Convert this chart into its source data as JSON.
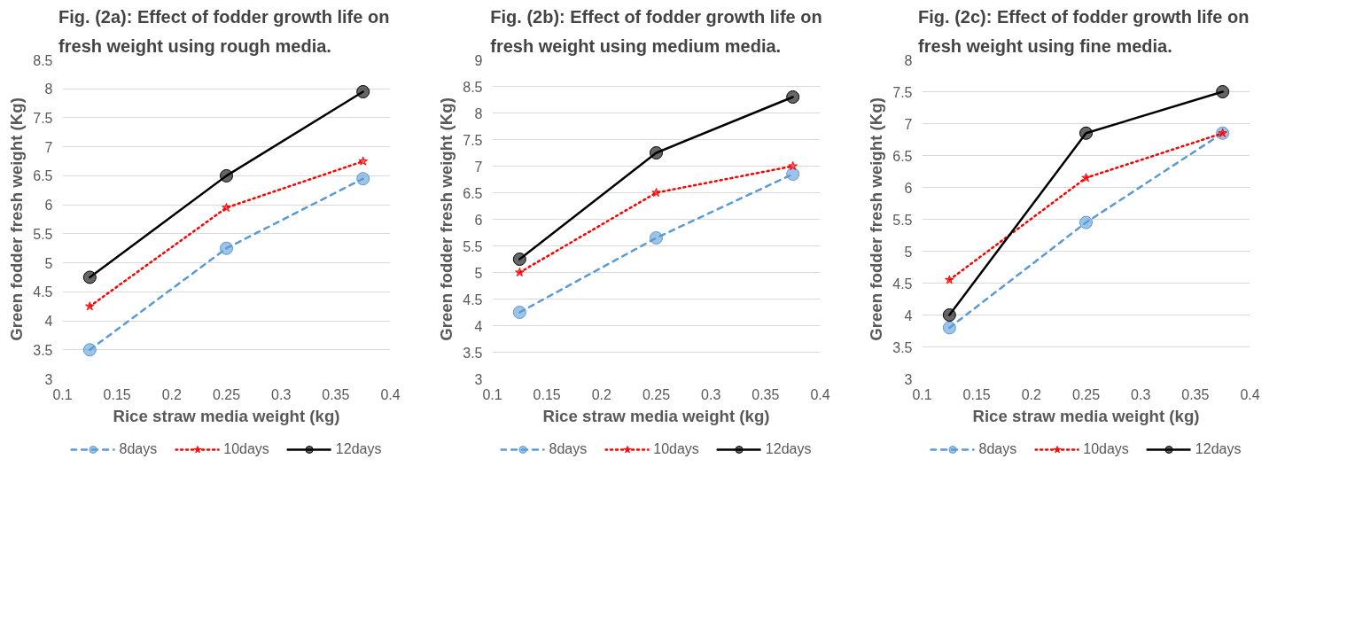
{
  "chart_data": [
    {
      "type": "line",
      "title": "Fig. (2a): Effect of fodder growth life  on\nfresh weight using rough media.",
      "xlabel": "Rice straw media weight (kg)",
      "ylabel": "Green fodder fresh weight (Kg)",
      "x": [
        0.125,
        0.25,
        0.375
      ],
      "xlim": [
        0.1,
        0.4
      ],
      "xticks": [
        0.1,
        0.15,
        0.2,
        0.25,
        0.3,
        0.35,
        0.4
      ],
      "ylim": [
        3,
        8.5
      ],
      "yticks": [
        3,
        3.5,
        4,
        4.5,
        5,
        5.5,
        6,
        6.5,
        7,
        7.5,
        8,
        8.5
      ],
      "grid": "y",
      "legend": "bottom",
      "series": [
        {
          "name": "8days",
          "color": "#5b9bd5",
          "marker": "circle",
          "line_style": "dashed",
          "values": [
            3.5,
            5.25,
            6.45
          ]
        },
        {
          "name": "10days",
          "color": "#ff0000",
          "marker": "star",
          "line_style": "dotted",
          "values": [
            4.25,
            5.95,
            6.75
          ]
        },
        {
          "name": "12days",
          "color": "#000000",
          "marker": "circle",
          "line_style": "solid",
          "values": [
            4.75,
            6.5,
            7.95
          ]
        }
      ]
    },
    {
      "type": "line",
      "title": "Fig. (2b): Effect of fodder growth life on\nfresh weight using medium media.",
      "xlabel": "Rice straw media weight (kg)",
      "ylabel": "Green fodder fresh weight (Kg)",
      "x": [
        0.125,
        0.25,
        0.375
      ],
      "xlim": [
        0.1,
        0.4
      ],
      "xticks": [
        0.1,
        0.15,
        0.2,
        0.25,
        0.3,
        0.35,
        0.4
      ],
      "ylim": [
        3,
        9
      ],
      "yticks": [
        3,
        3.5,
        4,
        4.5,
        5,
        5.5,
        6,
        6.5,
        7,
        7.5,
        8,
        8.5,
        9
      ],
      "grid": "y",
      "legend": "bottom",
      "series": [
        {
          "name": "8days",
          "color": "#5b9bd5",
          "marker": "circle",
          "line_style": "dashed",
          "values": [
            4.25,
            5.65,
            6.85
          ]
        },
        {
          "name": "10days",
          "color": "#ff0000",
          "marker": "star",
          "line_style": "dotted",
          "values": [
            5.0,
            6.5,
            7.0
          ]
        },
        {
          "name": "12days",
          "color": "#000000",
          "marker": "circle",
          "line_style": "solid",
          "values": [
            5.25,
            7.25,
            8.3
          ]
        }
      ]
    },
    {
      "type": "line",
      "title": "Fig. (2c): Effect of fodder growth life  on\nfresh weight using fine media.",
      "xlabel": "Rice straw media weight (kg)",
      "ylabel": "Green fodder fresh weight (Kg)",
      "x": [
        0.125,
        0.25,
        0.375
      ],
      "xlim": [
        0.1,
        0.4
      ],
      "xticks": [
        0.1,
        0.15,
        0.2,
        0.25,
        0.3,
        0.35,
        0.4
      ],
      "ylim": [
        3,
        8
      ],
      "yticks": [
        3,
        3.5,
        4,
        4.5,
        5,
        5.5,
        6,
        6.5,
        7,
        7.5,
        8
      ],
      "grid": "y",
      "legend": "bottom",
      "series": [
        {
          "name": "8days",
          "color": "#5b9bd5",
          "marker": "circle",
          "line_style": "dashed",
          "values": [
            3.8,
            5.45,
            6.85
          ]
        },
        {
          "name": "10days",
          "color": "#ff0000",
          "marker": "star",
          "line_style": "dotted",
          "values": [
            4.55,
            6.15,
            6.85
          ]
        },
        {
          "name": "12days",
          "color": "#000000",
          "marker": "circle",
          "line_style": "solid",
          "values": [
            4.0,
            6.85,
            7.5
          ]
        }
      ]
    }
  ]
}
